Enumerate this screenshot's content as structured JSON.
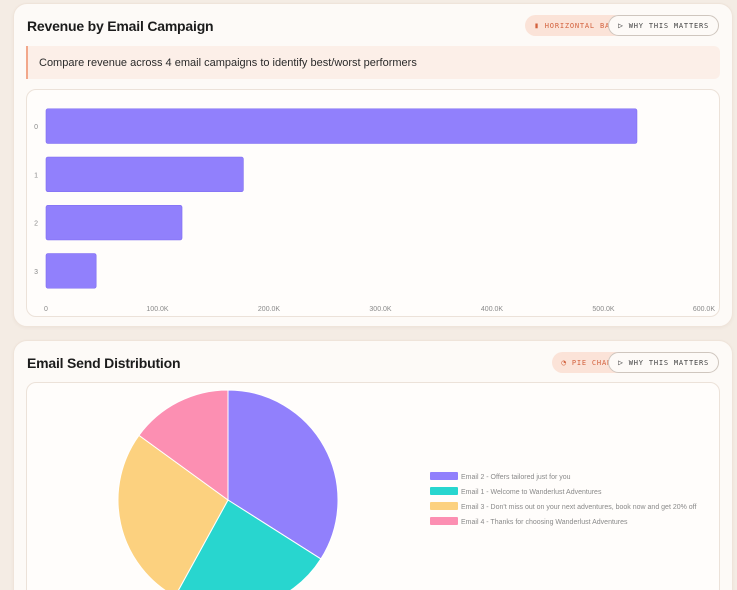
{
  "cards": [
    {
      "title": "Revenue by Email Campaign",
      "type_pill": {
        "icon": "bar-chart-icon",
        "glyph": "▮",
        "label": "HORIZONTAL BAR"
      },
      "why_pill": {
        "icon": "play-icon",
        "glyph": "▷",
        "label": "WHY THIS MATTERS"
      },
      "insight": "Compare revenue across 4 email campaigns to identify best/worst performers"
    },
    {
      "title": "Email Send Distribution",
      "type_pill": {
        "icon": "pie-chart-icon",
        "glyph": "◔",
        "label": "PIE CHART"
      },
      "why_pill": {
        "icon": "play-icon",
        "glyph": "▷",
        "label": "WHY THIS MATTERS"
      }
    }
  ],
  "chart_data": [
    {
      "type": "bar",
      "orientation": "horizontal",
      "categories": [
        "0",
        "1",
        "2",
        "3"
      ],
      "values": [
        530000,
        177000,
        122000,
        45000
      ],
      "xlim": [
        0,
        600000
      ],
      "xticks": [
        "0",
        "100.0K",
        "200.0K",
        "300.0K",
        "400.0K",
        "500.0K",
        "600.0K"
      ],
      "title": "",
      "xlabel": "",
      "ylabel": "",
      "grid": false,
      "colors": {
        "bar": "#9180fc",
        "bar_border": "#7d6bf0"
      }
    },
    {
      "type": "pie",
      "labels": [
        "Email 2 - Offers tailored just for you",
        "Email 1 - Welcome to Wanderlust Adventures",
        "Email 3 - Don't miss out on your next adventures, book now and get 20% off",
        "Email 4 - Thanks for choosing Wanderlust Adventures"
      ],
      "values": [
        34,
        24,
        27,
        15
      ],
      "colors": [
        "#9180fc",
        "#28d6cf",
        "#fcd17f",
        "#fc8fb2"
      ],
      "legend": "right",
      "title": ""
    }
  ]
}
